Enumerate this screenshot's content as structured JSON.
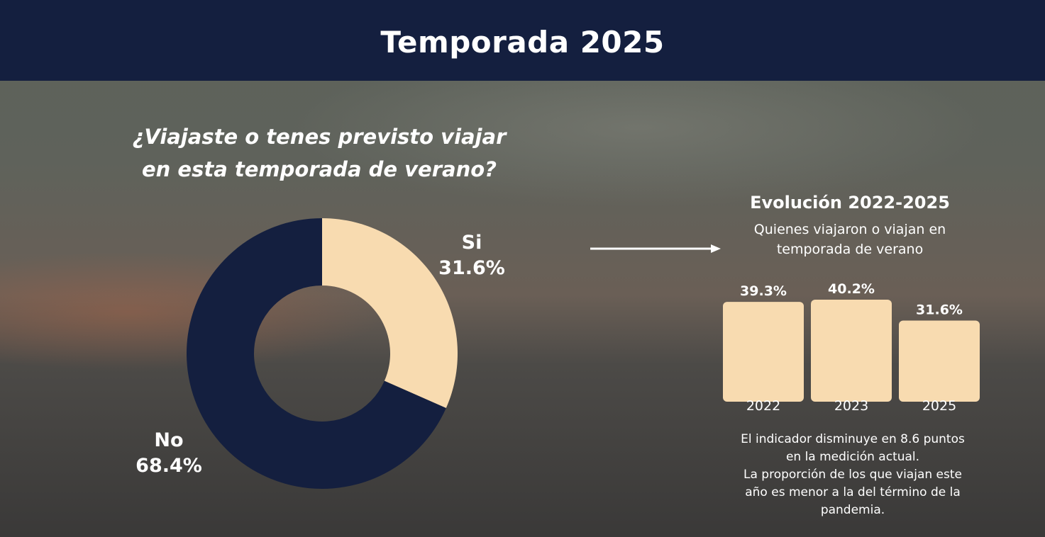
{
  "header": {
    "title": "Temporada 2025"
  },
  "question": {
    "line1": "¿Viajaste o tenes previsto viajar",
    "line2": "en esta temporada de verano?"
  },
  "evolution": {
    "title": "Evolución 2022-2025",
    "subtitle_line1": "Quienes viajaron o viajan en",
    "subtitle_line2": "temporada de verano"
  },
  "note": {
    "line1": "El indicador disminuye en 8.6 puntos",
    "line2": "en la medición actual.",
    "line3": "La proporción de los que viajan este",
    "line4": "año es menor a la del término de la",
    "line5": "pandemia."
  },
  "colors": {
    "navy": "#141f3f",
    "cream": "#f8dbb0"
  },
  "chart_data": [
    {
      "type": "pie",
      "donut": true,
      "categories": [
        "Si",
        "No"
      ],
      "values": [
        31.6,
        68.4
      ],
      "value_labels": [
        "31.6%",
        "68.4%"
      ],
      "colors": [
        "#f8dbb0",
        "#141f3f"
      ]
    },
    {
      "type": "bar",
      "categories": [
        "2022",
        "2023",
        "2025"
      ],
      "values": [
        39.3,
        40.2,
        31.6
      ],
      "value_labels": [
        "39.3%",
        "40.2%",
        "31.6%"
      ],
      "color": "#f8dbb0"
    }
  ]
}
